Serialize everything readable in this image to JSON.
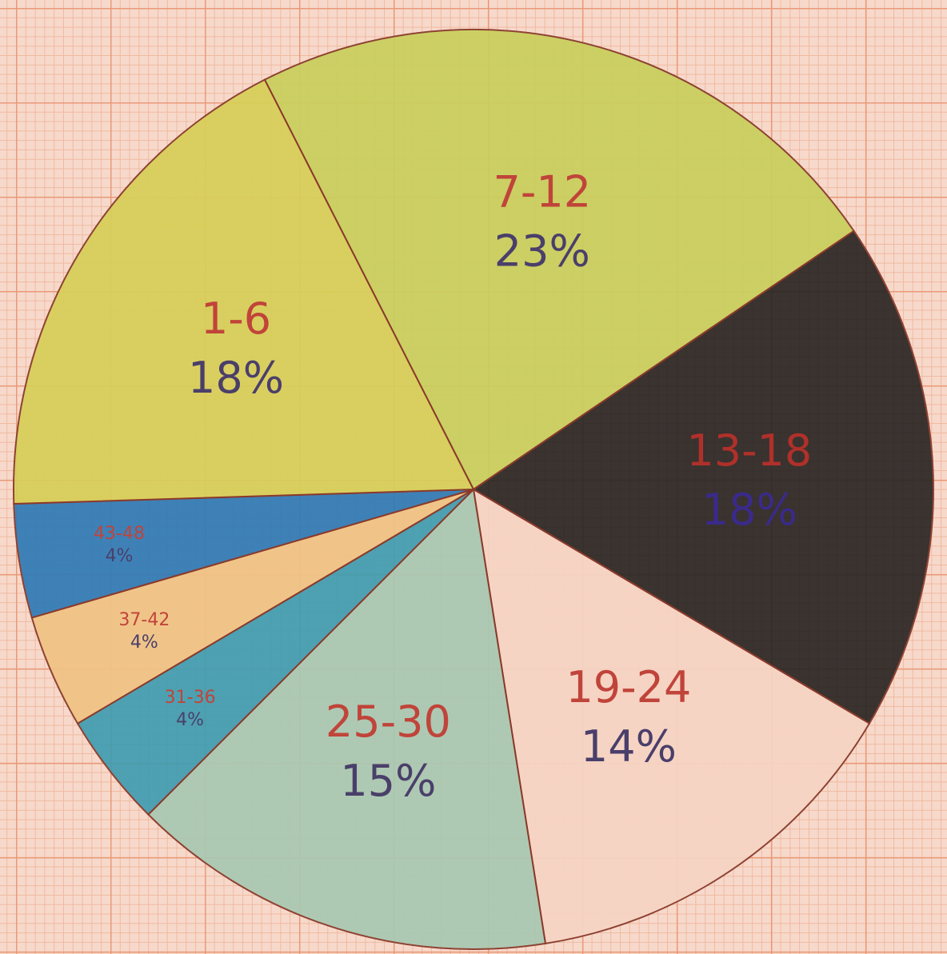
{
  "chart_data": {
    "type": "pie",
    "categories": [
      "7-12",
      "13-18",
      "19-24",
      "25-30",
      "31-36",
      "37-42",
      "43-48",
      "1-6"
    ],
    "values": [
      23,
      18,
      14,
      15,
      4,
      4,
      4,
      18
    ],
    "value_labels": [
      "23%",
      "18%",
      "14%",
      "15%",
      "4%",
      "4%",
      "4%",
      "18%"
    ],
    "colors": [
      "#c9cf5c",
      "#2a2523",
      "#f6d4c4",
      "#a8c8b2",
      "#3f9db0",
      "#f0c384",
      "#2f7ab6",
      "#d7cf57"
    ]
  }
}
